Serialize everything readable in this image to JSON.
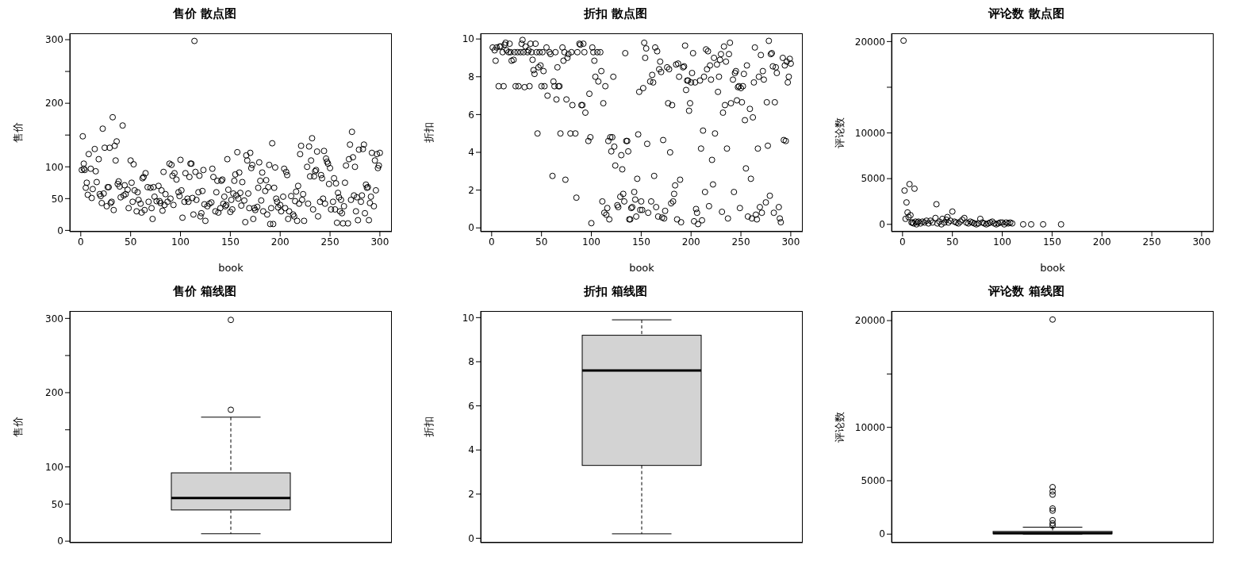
{
  "chart_data": [
    {
      "type": "scatter",
      "title": "售价 散点图",
      "xlabel": "book",
      "ylabel": "售价",
      "color": "#000000",
      "marker": "circle",
      "xlim": [
        -11,
        312
      ],
      "ylim": [
        -2,
        310
      ],
      "xticks": [
        0,
        50,
        100,
        150,
        200,
        250,
        300
      ],
      "yticks": [
        0,
        50,
        100,
        {
          "value": 150,
          "label": null
        },
        200,
        {
          "value": 250,
          "label": null
        },
        300
      ],
      "x": [
        1,
        2,
        3,
        3,
        4,
        5,
        6,
        7,
        8,
        10,
        11,
        12,
        14,
        15,
        16,
        18,
        19,
        20,
        21,
        22,
        23,
        24,
        26,
        27,
        28,
        29,
        30,
        31,
        32,
        33,
        34,
        35,
        36,
        37,
        38,
        39,
        40,
        42,
        43,
        44,
        45,
        47,
        48,
        50,
        51,
        52,
        53,
        54,
        56,
        57,
        58,
        60,
        61,
        62,
        63,
        64,
        65,
        67,
        68,
        70,
        71,
        72,
        73,
        74,
        76,
        78,
        79,
        80,
        81,
        82,
        83,
        84,
        85,
        87,
        89,
        90,
        91,
        92,
        93,
        94,
        96,
        98,
        99,
        100,
        101,
        102,
        104,
        105,
        107,
        108,
        109,
        110,
        111,
        112,
        113,
        114,
        115,
        116,
        118,
        119,
        120,
        121,
        122,
        123,
        124,
        125,
        127,
        129,
        131,
        132,
        133,
        135,
        136,
        137,
        138,
        140,
        141,
        142,
        143,
        144,
        145,
        146,
        147,
        148,
        150,
        151,
        152,
        153,
        154,
        155,
        156,
        157,
        158,
        159,
        160,
        161,
        162,
        164,
        165,
        166,
        167,
        168,
        169,
        170,
        171,
        172,
        173,
        174,
        175,
        177,
        178,
        179,
        180,
        181,
        182,
        183,
        185,
        186,
        187,
        188,
        189,
        190,
        191,
        192,
        193,
        194,
        195,
        196,
        197,
        198,
        200,
        201,
        203,
        204,
        205,
        206,
        207,
        208,
        209,
        211,
        213,
        214,
        215,
        216,
        217,
        218,
        219,
        220,
        221,
        222,
        223,
        224,
        227,
        228,
        229,
        230,
        231,
        232,
        233,
        234,
        235,
        236,
        237,
        238,
        240,
        241,
        242,
        243,
        244,
        245,
        246,
        247,
        248,
        249,
        250,
        251,
        253,
        254,
        255,
        256,
        257,
        258,
        259,
        260,
        261,
        262,
        263,
        264,
        265,
        266,
        268,
        269,
        270,
        271,
        272,
        273,
        274,
        275,
        276,
        277,
        278,
        279,
        281,
        282,
        283,
        284,
        285,
        286,
        287,
        288,
        289,
        290,
        291,
        292,
        294,
        295,
        296,
        297,
        298,
        299,
        300
      ],
      "values": [
        95,
        148,
        105,
        97,
        95,
        67,
        75,
        56,
        120,
        97,
        51,
        65,
        128,
        93,
        76,
        112,
        57,
        54,
        43,
        160,
        58,
        130,
        38,
        68,
        68,
        130,
        43,
        45,
        178,
        32,
        133,
        110,
        140,
        73,
        77,
        69,
        52,
        165,
        55,
        71,
        57,
        64,
        35,
        110,
        75,
        45,
        104,
        63,
        30,
        60,
        48,
        42,
        28,
        82,
        84,
        32,
        90,
        68,
        45,
        67,
        35,
        18,
        68,
        53,
        46,
        70,
        46,
        43,
        63,
        31,
        92,
        40,
        57,
        45,
        105,
        50,
        103,
        86,
        40,
        90,
        80,
        60,
        54,
        111,
        63,
        20,
        45,
        90,
        50,
        45,
        84,
        105,
        105,
        51,
        25,
        298,
        92,
        48,
        60,
        86,
        22,
        27,
        62,
        95,
        41,
        15,
        38,
        42,
        44,
        97,
        84,
        30,
        60,
        78,
        28,
        35,
        78,
        80,
        42,
        53,
        38,
        40,
        112,
        64,
        29,
        48,
        33,
        58,
        78,
        88,
        55,
        123,
        50,
        91,
        59,
        39,
        76,
        47,
        13,
        118,
        110,
        58,
        35,
        122,
        98,
        103,
        18,
        35,
        32,
        37,
        67,
        107,
        78,
        47,
        91,
        30,
        62,
        79,
        25,
        68,
        103,
        10,
        35,
        137,
        10,
        67,
        99,
        50,
        45,
        36,
        40,
        30,
        53,
        97,
        35,
        92,
        87,
        18,
        30,
        54,
        25,
        22,
        46,
        61,
        15,
        70,
        42,
        120,
        133,
        48,
        57,
        15,
        100,
        42,
        132,
        85,
        110,
        145,
        33,
        85,
        93,
        95,
        124,
        22,
        45,
        87,
        82,
        50,
        125,
        42,
        113,
        108,
        105,
        73,
        98,
        33,
        45,
        82,
        33,
        74,
        12,
        59,
        52,
        30,
        48,
        27,
        11,
        38,
        75,
        102,
        11,
        112,
        135,
        48,
        155,
        115,
        55,
        100,
        30,
        52,
        16,
        127,
        45,
        55,
        128,
        135,
        27,
        72,
        67,
        68,
        16,
        43,
        53,
        122,
        38,
        110,
        63,
        120,
        98,
        102,
        122
      ]
    },
    {
      "type": "scatter",
      "title": "折扣 散点图",
      "xlabel": "book",
      "ylabel": "折扣",
      "color": "#000000",
      "marker": "circle",
      "xlim": [
        -11,
        312
      ],
      "ylim": [
        -0.2,
        10.3
      ],
      "xticks": [
        0,
        50,
        100,
        150,
        200,
        250,
        300
      ],
      "yticks": [
        0,
        2,
        4,
        6,
        8,
        10
      ],
      "x": [
        1,
        3,
        4,
        5,
        7,
        8,
        9,
        11,
        12,
        13,
        14,
        15,
        17,
        18,
        19,
        20,
        22,
        23,
        24,
        26,
        27,
        29,
        30,
        31,
        32,
        33,
        34,
        36,
        37,
        38,
        39,
        40,
        41,
        42,
        43,
        44,
        45,
        46,
        47,
        48,
        49,
        50,
        51,
        52,
        53,
        55,
        56,
        58,
        59,
        61,
        62,
        63,
        64,
        65,
        66,
        67,
        68,
        69,
        71,
        72,
        73,
        74,
        75,
        76,
        77,
        79,
        80,
        81,
        84,
        85,
        86,
        88,
        89,
        90,
        91,
        92,
        93,
        94,
        97,
        98,
        99,
        100,
        101,
        102,
        103,
        104,
        106,
        107,
        109,
        110,
        111,
        112,
        113,
        114,
        115,
        116,
        117,
        118,
        119,
        120,
        121,
        122,
        123,
        124,
        126,
        127,
        129,
        130,
        131,
        132,
        133,
        134,
        135,
        136,
        137,
        138,
        139,
        140,
        141,
        143,
        144,
        145,
        146,
        147,
        148,
        149,
        150,
        151,
        152,
        153,
        154,
        155,
        156,
        157,
        159,
        160,
        161,
        162,
        163,
        164,
        165,
        166,
        167,
        168,
        169,
        170,
        171,
        172,
        173,
        174,
        176,
        177,
        178,
        179,
        180,
        181,
        182,
        183,
        184,
        185,
        186,
        187,
        188,
        189,
        190,
        192,
        193,
        194,
        195,
        196,
        197,
        198,
        199,
        200,
        201,
        202,
        203,
        204,
        205,
        206,
        207,
        209,
        210,
        211,
        212,
        213,
        214,
        215,
        216,
        217,
        218,
        219,
        220,
        221,
        222,
        223,
        224,
        226,
        227,
        228,
        229,
        230,
        231,
        232,
        233,
        234,
        235,
        236,
        237,
        238,
        239,
        240,
        242,
        243,
        244,
        245,
        246,
        247,
        248,
        249,
        250,
        251,
        252,
        253,
        254,
        255,
        256,
        257,
        259,
        260,
        261,
        262,
        263,
        264,
        265,
        266,
        267,
        268,
        269,
        270,
        271,
        272,
        273,
        275,
        276,
        277,
        278,
        279,
        280,
        281,
        282,
        283,
        284,
        285,
        286,
        288,
        289,
        290,
        292,
        293,
        294,
        295,
        296,
        297,
        298,
        299,
        300
      ],
      "values": [
        9.55,
        9.4,
        8.85,
        9.55,
        7.5,
        9.6,
        9.6,
        9.3,
        7.5,
        9.7,
        9.8,
        9.4,
        9.3,
        9.75,
        9.3,
        8.85,
        8.9,
        9.3,
        7.5,
        9.3,
        7.5,
        9.3,
        9.75,
        9.95,
        9.3,
        7.45,
        9.6,
        9.3,
        9.4,
        7.5,
        9.75,
        9.3,
        8.9,
        8.35,
        8.15,
        9.75,
        9.3,
        5.0,
        8.5,
        9.3,
        8.6,
        7.5,
        9.3,
        8.3,
        7.5,
        9.55,
        7.0,
        9.3,
        9.2,
        2.75,
        7.75,
        7.5,
        9.3,
        6.8,
        8.5,
        7.5,
        7.5,
        5.0,
        9.55,
        8.85,
        9.3,
        2.55,
        6.8,
        9.0,
        9.2,
        5.0,
        9.3,
        6.5,
        5.0,
        1.6,
        9.3,
        9.75,
        9.7,
        6.5,
        6.5,
        9.75,
        9.3,
        6.1,
        4.6,
        7.1,
        4.8,
        0.25,
        9.55,
        9.3,
        8.85,
        8.0,
        9.3,
        7.75,
        9.3,
        8.3,
        1.4,
        6.6,
        0.8,
        7.5,
        0.7,
        1.05,
        4.6,
        0.45,
        4.8,
        4.05,
        4.8,
        8.0,
        4.3,
        3.3,
        1.2,
        1.1,
        1.65,
        3.85,
        3.1,
        1.8,
        1.4,
        9.25,
        4.6,
        4.6,
        4.05,
        0.45,
        0.45,
        1.05,
        1.1,
        1.9,
        1.5,
        0.6,
        2.6,
        4.95,
        7.2,
        0.95,
        1.4,
        0.95,
        7.4,
        9.8,
        9.0,
        9.5,
        4.45,
        0.8,
        7.75,
        1.4,
        8.1,
        7.7,
        2.75,
        9.55,
        1.1,
        9.35,
        0.6,
        8.4,
        8.8,
        8.25,
        0.55,
        4.65,
        0.5,
        0.9,
        8.5,
        6.6,
        8.4,
        4.0,
        1.3,
        6.5,
        1.4,
        1.8,
        2.25,
        8.65,
        0.45,
        8.7,
        8.0,
        2.55,
        0.3,
        8.5,
        8.55,
        9.65,
        7.3,
        7.8,
        7.8,
        6.2,
        6.6,
        7.7,
        8.2,
        9.25,
        0.35,
        7.7,
        1.0,
        0.8,
        0.2,
        7.8,
        4.2,
        0.4,
        5.15,
        8.0,
        1.9,
        9.45,
        8.4,
        9.35,
        1.15,
        8.6,
        7.85,
        3.6,
        2.3,
        9.0,
        5.0,
        8.65,
        7.2,
        8.0,
        8.9,
        9.2,
        0.85,
        6.1,
        9.6,
        6.5,
        8.8,
        4.2,
        0.5,
        9.2,
        9.8,
        6.6,
        7.85,
        1.9,
        8.2,
        8.3,
        6.75,
        7.45,
        7.5,
        1.05,
        7.4,
        6.65,
        7.5,
        8.15,
        5.7,
        3.15,
        8.6,
        0.6,
        6.3,
        2.6,
        0.5,
        5.85,
        7.7,
        9.55,
        0.7,
        0.45,
        4.2,
        8.0,
        1.1,
        9.15,
        0.8,
        8.3,
        7.85,
        1.35,
        6.65,
        4.35,
        9.9,
        1.7,
        9.2,
        9.25,
        8.55,
        0.8,
        6.65,
        8.5,
        8.2,
        1.1,
        0.5,
        0.3,
        9.0,
        4.65,
        8.6,
        4.6,
        8.8,
        7.7,
        8.0,
        8.95,
        8.7
      ]
    },
    {
      "type": "scatter",
      "title": "评论数 散点图",
      "xlabel": "book",
      "ylabel": "评论数",
      "color": "#000000",
      "marker": "circle",
      "xlim": [
        -11,
        312
      ],
      "ylim": [
        -800,
        20900
      ],
      "xticks": [
        0,
        50,
        100,
        150,
        200,
        250,
        300
      ],
      "yticks": [
        0,
        5000,
        10000,
        {
          "value": 15000,
          "label": null
        },
        20000
      ],
      "x": [
        1,
        2,
        3,
        4,
        5,
        6,
        7,
        8,
        9,
        10,
        11,
        12,
        13,
        14,
        15,
        16,
        18,
        20,
        22,
        24,
        26,
        28,
        30,
        33,
        34,
        35,
        37,
        39,
        40,
        42,
        44,
        45,
        46,
        48,
        50,
        52,
        54,
        56,
        58,
        60,
        62,
        64,
        66,
        68,
        70,
        72,
        74,
        76,
        78,
        80,
        82,
        84,
        86,
        88,
        90,
        92,
        94,
        96,
        98,
        100,
        102,
        104,
        106,
        108,
        110,
        121,
        129,
        141,
        159
      ],
      "values": [
        20100,
        3700,
        600,
        2400,
        1300,
        800,
        4400,
        1000,
        200,
        200,
        100,
        3900,
        300,
        0,
        200,
        300,
        100,
        300,
        200,
        400,
        100,
        400,
        200,
        700,
        2200,
        100,
        300,
        0,
        600,
        200,
        500,
        800,
        200,
        400,
        1400,
        300,
        200,
        100,
        300,
        500,
        700,
        200,
        100,
        300,
        200,
        100,
        0,
        100,
        600,
        200,
        100,
        0,
        100,
        200,
        300,
        100,
        0,
        100,
        200,
        200,
        0,
        200,
        100,
        200,
        100,
        0,
        0,
        0,
        0
      ]
    },
    {
      "type": "box",
      "title": "售价 箱线图",
      "ylabel": "售价",
      "color": "#d3d3d3",
      "categories": [
        null
      ],
      "tick_labels": "y",
      "ylim": [
        -2,
        310
      ],
      "yticks": [
        0,
        50,
        100,
        {
          "value": 150,
          "label": null
        },
        200,
        {
          "value": 250,
          "label": null
        },
        300
      ],
      "boxes": [
        {
          "low": 10,
          "q1": 42,
          "median": 58,
          "q3": 92,
          "high": 167,
          "outliers": [
            177,
            298
          ]
        }
      ]
    },
    {
      "type": "box",
      "title": "折扣 箱线图",
      "ylabel": "折扣",
      "color": "#d3d3d3",
      "categories": [
        null
      ],
      "tick_labels": "y",
      "ylim": [
        -0.2,
        10.3
      ],
      "yticks": [
        0,
        2,
        4,
        6,
        8,
        10
      ],
      "boxes": [
        {
          "low": 0.2,
          "q1": 3.3,
          "median": 7.6,
          "q3": 9.2,
          "high": 9.9
        }
      ]
    },
    {
      "type": "box",
      "title": "评论数 箱线图",
      "ylabel": "评论数",
      "color": "#d3d3d3",
      "categories": [
        null
      ],
      "tick_labels": "y",
      "ylim": [
        -800,
        20900
      ],
      "yticks": [
        0,
        5000,
        10000,
        {
          "value": 15000,
          "label": null
        },
        20000
      ],
      "boxes": [
        {
          "low": 0,
          "q1": 30,
          "median": 100,
          "q3": 250,
          "high": 650,
          "outliers": [
            800,
            1000,
            1300,
            2200,
            2400,
            3700,
            4000,
            4400,
            20100
          ]
        }
      ]
    }
  ]
}
